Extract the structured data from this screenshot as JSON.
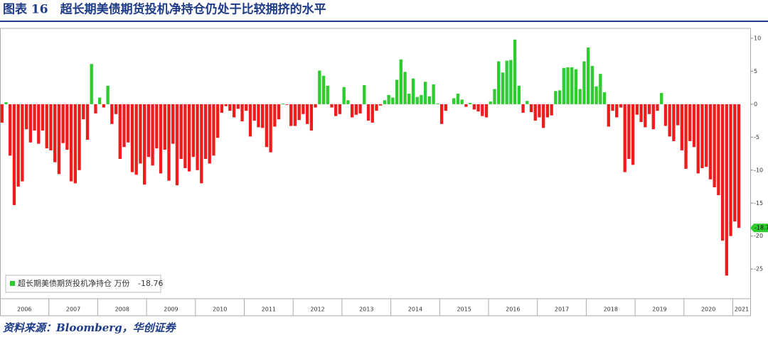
{
  "chart_data": {
    "type": "bar",
    "title": "图表 16　超长期美债期货投机净持仓仍处于比较拥挤的水平",
    "source": "资料来源：Bloomberg，华创证券",
    "years": [
      "2006",
      "2007",
      "2008",
      "2009",
      "2010",
      "2011",
      "2012",
      "2013",
      "2014",
      "2015",
      "2016",
      "2017",
      "2018",
      "2019",
      "2020",
      "2021"
    ],
    "series": [
      {
        "name": "超长期美债期货投机净持仓 万份",
        "positive_color": "#2ecc2e",
        "negative_color": "#ee1c1c",
        "values": [
          -2.8,
          0.3,
          -7.8,
          -15.3,
          -12.5,
          -11.7,
          -3.8,
          -5.8,
          -4.0,
          -6.0,
          -4.0,
          -6.7,
          -7.0,
          -8.8,
          -10.6,
          -5.9,
          -6.9,
          -11.7,
          -12.0,
          -10.0,
          -2.3,
          -5.4,
          6.1,
          -1.4,
          1.0,
          -0.5,
          2.8,
          -3.0,
          -1.5,
          -8.3,
          -6.5,
          -5.8,
          -10.3,
          -10.7,
          -9.0,
          -12.2,
          -8.0,
          -9.3,
          -6.7,
          -10.5,
          -6.9,
          -11.6,
          -6.0,
          -12.3,
          -8.3,
          -9.7,
          -10.2,
          -8.0,
          -10.0,
          -12.0,
          -8.3,
          -9.0,
          -7.8,
          -5.1,
          -1.3,
          -0.3,
          -1.0,
          -2.0,
          -0.7,
          -2.6,
          -1.0,
          -4.9,
          -2.5,
          -3.5,
          -3.6,
          -6.5,
          -7.3,
          -3.4,
          -2.3,
          0.1,
          -0.1,
          -3.3,
          -3.3,
          -2.4,
          -1.5,
          -3.0,
          -4.0,
          -0.5,
          5.1,
          4.3,
          2.8,
          -0.5,
          -1.8,
          -1.5,
          2.6,
          0.6,
          -2.0,
          -1.6,
          -1.4,
          2.9,
          -2.5,
          -2.8,
          -1.0,
          -0.2,
          0.6,
          1.4,
          1.0,
          3.7,
          6.8,
          4.9,
          1.6,
          3.9,
          1.1,
          1.4,
          3.4,
          1.2,
          3.0,
          0.1,
          -3.0,
          -1.0,
          0.0,
          0.9,
          1.6,
          0.7,
          -0.4,
          0.2,
          -0.8,
          -1.1,
          -1.8,
          -2.0,
          0.4,
          2.3,
          6.5,
          4.8,
          6.6,
          6.7,
          9.8,
          2.8,
          -1.3,
          0.5,
          -1.2,
          -2.5,
          -2.0,
          -3.6,
          -2.0,
          -1.7,
          2.0,
          2.1,
          5.5,
          5.6,
          5.6,
          5.3,
          2.3,
          6.5,
          8.6,
          5.8,
          2.7,
          4.6,
          1.8,
          -3.4,
          -1.0,
          -2.0,
          -0.5,
          -10.3,
          -8.3,
          -9.2,
          -1.6,
          -2.7,
          -3.5,
          -1.5,
          -3.8,
          -1.0,
          1.7,
          -3.3,
          -4.9,
          -5.6,
          -3.2,
          -7.0,
          -9.8,
          -5.6,
          -6.5,
          -10.5,
          -9.7,
          -9.5,
          -11.4,
          -12.6,
          -13.8,
          -20.7,
          -26.0,
          -20.0,
          -17.8,
          -18.76
        ]
      }
    ],
    "ylim": [
      -29.5,
      11.5
    ],
    "yticks": [
      10,
      5,
      0,
      -5,
      -10,
      -15,
      -20,
      -25
    ],
    "legend": "bottom-left"
  }
}
